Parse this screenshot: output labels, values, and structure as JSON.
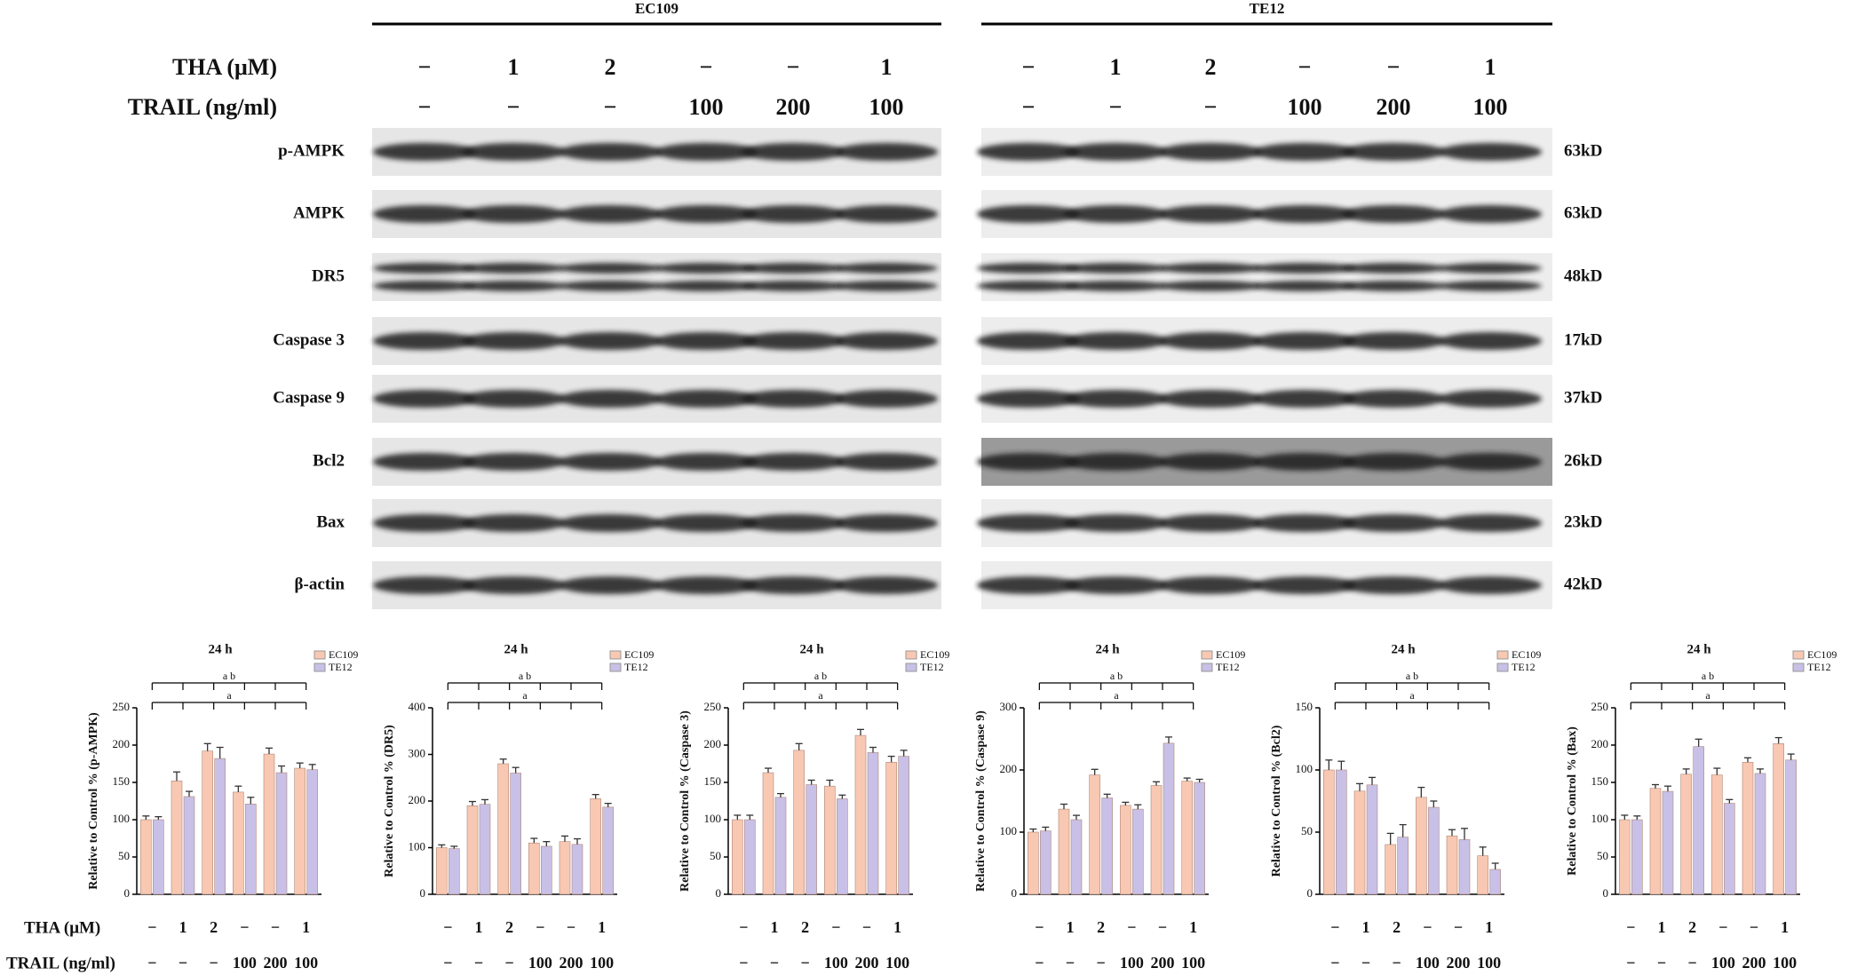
{
  "blot": {
    "groups": [
      "EC109",
      "TE12"
    ],
    "proteins": [
      {
        "name": "p-AMPK",
        "size": "63kD"
      },
      {
        "name": "AMPK",
        "size": "63kD"
      },
      {
        "name": "DR5",
        "size": "48kD"
      },
      {
        "name": "Caspase 3",
        "size": "17kD"
      },
      {
        "name": "Caspase 9",
        "size": "37kD"
      },
      {
        "name": "Bcl2",
        "size": "26kD"
      },
      {
        "name": "Bax",
        "size": "23kD"
      },
      {
        "name": "β-actin",
        "size": "42kD"
      }
    ]
  },
  "treatments": [
    {
      "label": "THA (μM)",
      "values": [
        "−",
        "1",
        "2",
        "−",
        "−",
        "1"
      ]
    },
    {
      "label": "TRAIL (ng/ml)",
      "values": [
        "−",
        "−",
        "−",
        "100",
        "200",
        "100"
      ]
    }
  ],
  "chart_data": [
    {
      "type": "bar",
      "title": "24 h",
      "y_label": "Relative to Control % (p-AMPK)",
      "ylim": [
        0,
        250
      ],
      "yticks": [
        0,
        50,
        100,
        150,
        200,
        250
      ],
      "annotations": [
        "a b",
        "a"
      ],
      "series": [
        {
          "name": "EC109",
          "color": "#f8c8b2",
          "values": [
            100,
            152,
            192,
            137,
            188,
            169
          ],
          "errors": [
            5,
            12,
            10,
            8,
            8,
            7
          ]
        },
        {
          "name": "TE12",
          "color": "#c8c0e6",
          "values": [
            100,
            131,
            182,
            121,
            163,
            167
          ],
          "errors": [
            4,
            7,
            15,
            9,
            9,
            7
          ]
        }
      ]
    },
    {
      "type": "bar",
      "title": "24 h",
      "y_label": "Relative to Control % (DR5)",
      "ylim": [
        0,
        400
      ],
      "yticks": [
        0,
        100,
        200,
        300,
        400
      ],
      "annotations": [
        "a b",
        "a"
      ],
      "series": [
        {
          "name": "EC109",
          "color": "#f8c8b2",
          "values": [
            100,
            190,
            280,
            110,
            113,
            205
          ],
          "errors": [
            6,
            9,
            10,
            10,
            12,
            9
          ]
        },
        {
          "name": "TE12",
          "color": "#c8c0e6",
          "values": [
            98,
            193,
            260,
            103,
            107,
            187
          ],
          "errors": [
            5,
            10,
            12,
            10,
            12,
            8
          ]
        }
      ]
    },
    {
      "type": "bar",
      "title": "24 h",
      "y_label": "Relative to Control % (Caspase 3)",
      "ylim": [
        0,
        250
      ],
      "yticks": [
        0,
        50,
        100,
        150,
        200,
        250
      ],
      "annotations": [
        "a b",
        "a"
      ],
      "series": [
        {
          "name": "EC109",
          "color": "#f8c8b2",
          "values": [
            100,
            163,
            193,
            145,
            213,
            177
          ],
          "errors": [
            6,
            6,
            9,
            8,
            8,
            8
          ]
        },
        {
          "name": "TE12",
          "color": "#c8c0e6",
          "values": [
            100,
            130,
            147,
            128,
            190,
            185
          ],
          "errors": [
            6,
            5,
            6,
            5,
            7,
            8
          ]
        }
      ]
    },
    {
      "type": "bar",
      "title": "24 h",
      "y_label": "Relative to Control % (Caspase 9)",
      "ylim": [
        0,
        300
      ],
      "yticks": [
        0,
        100,
        200,
        300
      ],
      "annotations": [
        "a b",
        "a"
      ],
      "series": [
        {
          "name": "EC109",
          "color": "#f8c8b2",
          "values": [
            100,
            137,
            192,
            143,
            175,
            182
          ],
          "errors": [
            5,
            8,
            9,
            5,
            6,
            5
          ]
        },
        {
          "name": "TE12",
          "color": "#c8c0e6",
          "values": [
            102,
            120,
            155,
            137,
            243,
            180
          ],
          "errors": [
            6,
            7,
            6,
            7,
            10,
            5
          ]
        }
      ]
    },
    {
      "type": "bar",
      "title": "24 h",
      "y_label": "Relative to Control % (Bcl2)",
      "ylim": [
        0,
        150
      ],
      "yticks": [
        0,
        50,
        100,
        150
      ],
      "annotations": [
        "a b",
        "a"
      ],
      "series": [
        {
          "name": "EC109",
          "color": "#f8c8b2",
          "values": [
            100,
            83,
            40,
            78,
            47,
            31
          ],
          "errors": [
            8,
            6,
            9,
            8,
            5,
            7
          ]
        },
        {
          "name": "TE12",
          "color": "#c8c0e6",
          "values": [
            100,
            88,
            46,
            70,
            44,
            20
          ],
          "errors": [
            7,
            6,
            10,
            5,
            9,
            5
          ]
        }
      ]
    },
    {
      "type": "bar",
      "title": "24 h",
      "y_label": "Relative to Control % (Bax)",
      "ylim": [
        0,
        250
      ],
      "yticks": [
        0,
        50,
        100,
        150,
        200,
        250
      ],
      "annotations": [
        "a b",
        "a"
      ],
      "series": [
        {
          "name": "EC109",
          "color": "#f8c8b2",
          "values": [
            100,
            142,
            161,
            160,
            177,
            202
          ],
          "errors": [
            6,
            5,
            7,
            9,
            6,
            8
          ]
        },
        {
          "name": "TE12",
          "color": "#c8c0e6",
          "values": [
            100,
            138,
            198,
            122,
            162,
            180
          ],
          "errors": [
            5,
            7,
            10,
            5,
            6,
            8
          ]
        }
      ]
    }
  ]
}
